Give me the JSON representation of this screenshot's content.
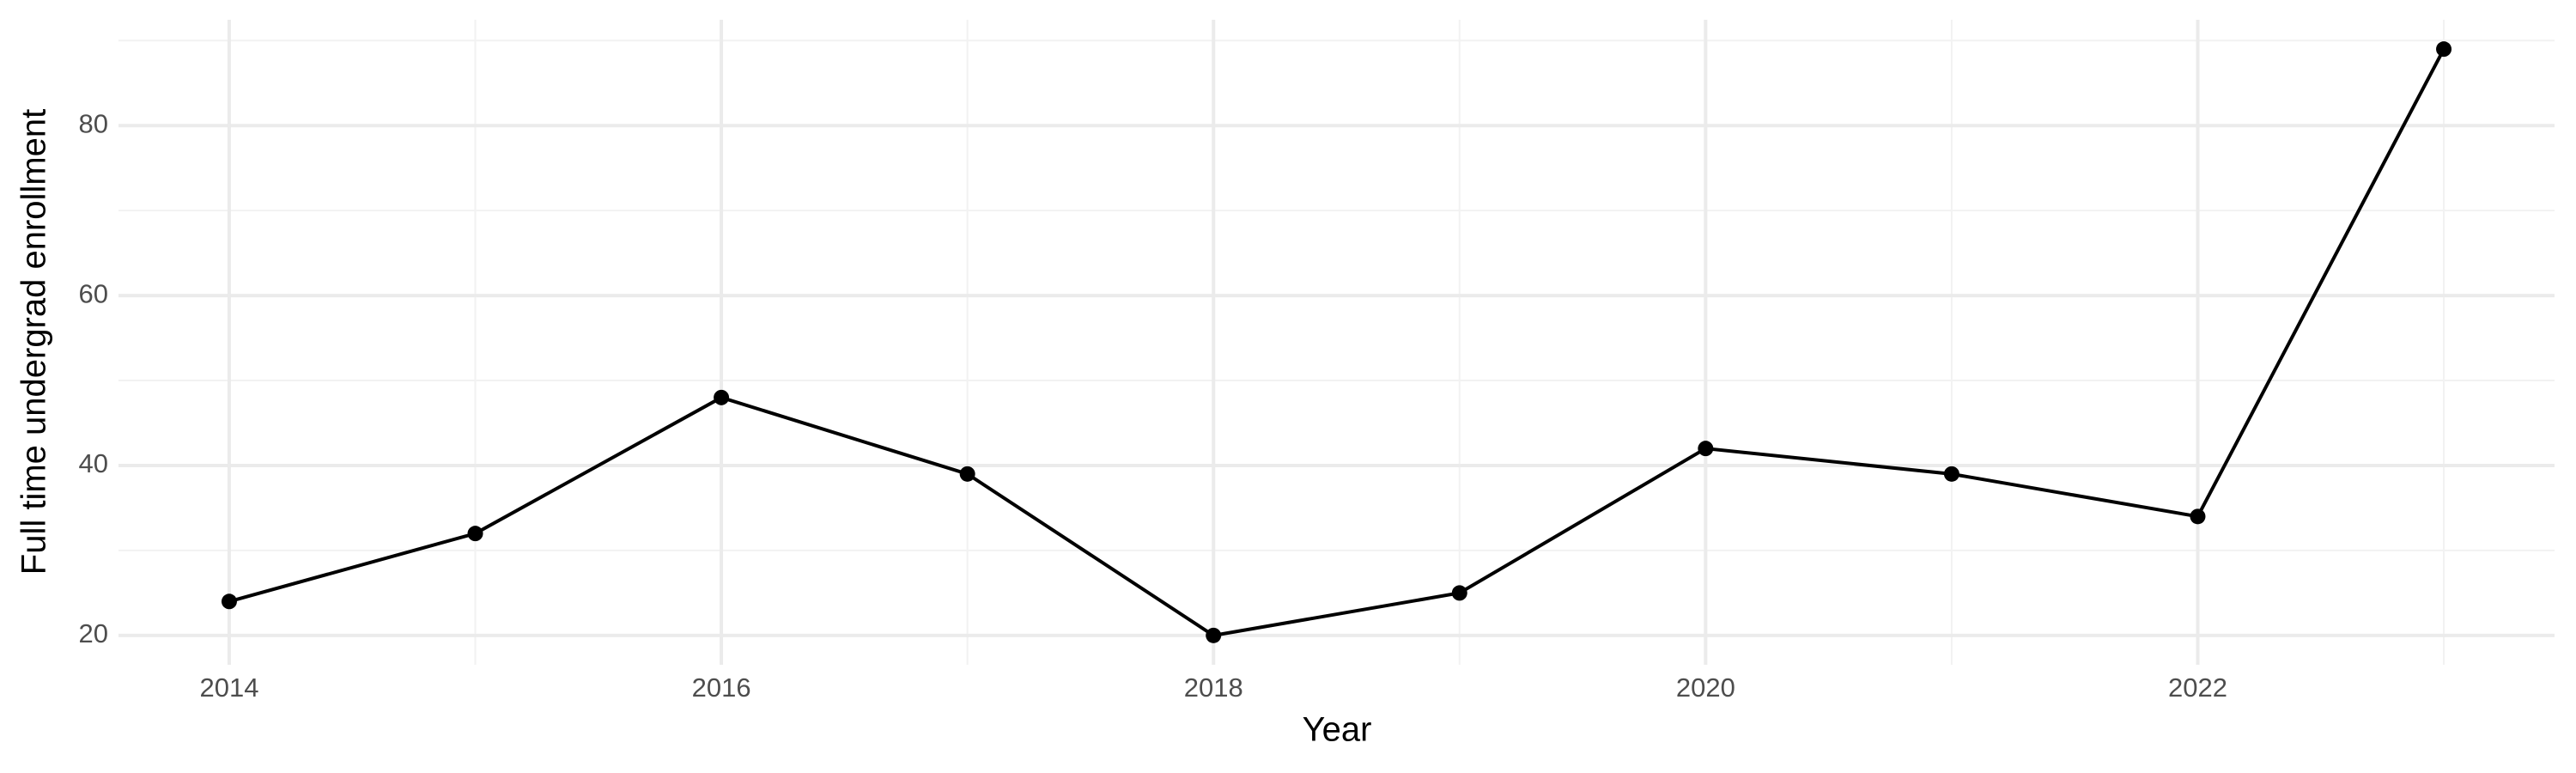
{
  "chart_data": {
    "type": "line",
    "x_label": "Year",
    "y_label": "Full time undergrad enrollment",
    "x": [
      2014,
      2015,
      2016,
      2017,
      2018,
      2019,
      2020,
      2021,
      2022,
      2023
    ],
    "series": [
      {
        "name": "Full time undergrad enrollment",
        "color": "#000000",
        "values": [
          24,
          32,
          48,
          39,
          20,
          25,
          42,
          39,
          34,
          89
        ]
      }
    ],
    "xlim": [
      2013.55,
      2023.45
    ],
    "xticks": [
      2014,
      2016,
      2018,
      2020,
      2022
    ],
    "xminor": [
      2015,
      2017,
      2019,
      2021,
      2023
    ],
    "ylim": [
      16.55,
      92.45
    ],
    "yticks": [
      20,
      40,
      60,
      80
    ],
    "yminor": [
      30,
      50,
      70,
      90
    ],
    "grid": true
  }
}
